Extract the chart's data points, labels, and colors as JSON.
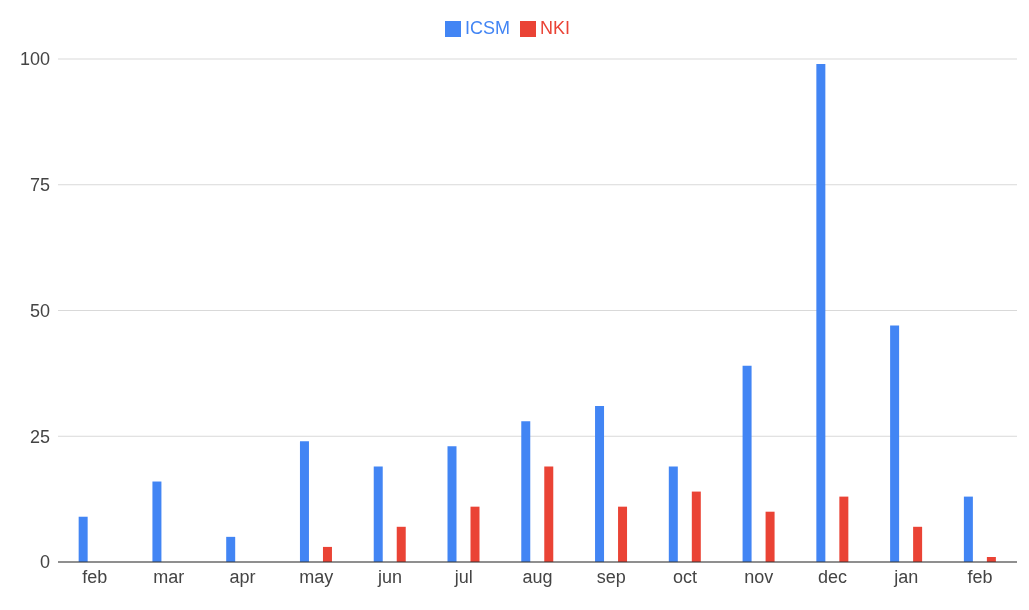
{
  "chart_data": {
    "type": "bar",
    "categories": [
      "feb",
      "mar",
      "apr",
      "may",
      "jun",
      "jul",
      "aug",
      "sep",
      "oct",
      "nov",
      "dec",
      "jan",
      "feb"
    ],
    "series": [
      {
        "name": "ICSM",
        "color": "#4285f4",
        "values": [
          9,
          16,
          5,
          24,
          19,
          23,
          28,
          31,
          19,
          39,
          99,
          47,
          13
        ]
      },
      {
        "name": "NKI",
        "color": "#ea4335",
        "values": [
          0,
          0,
          0,
          3,
          7,
          11,
          19,
          11,
          14,
          10,
          13,
          7,
          1
        ]
      }
    ],
    "ylim": [
      0,
      100
    ],
    "yticks": [
      0,
      25,
      50,
      75,
      100
    ],
    "grid": "y",
    "legend": "top"
  }
}
